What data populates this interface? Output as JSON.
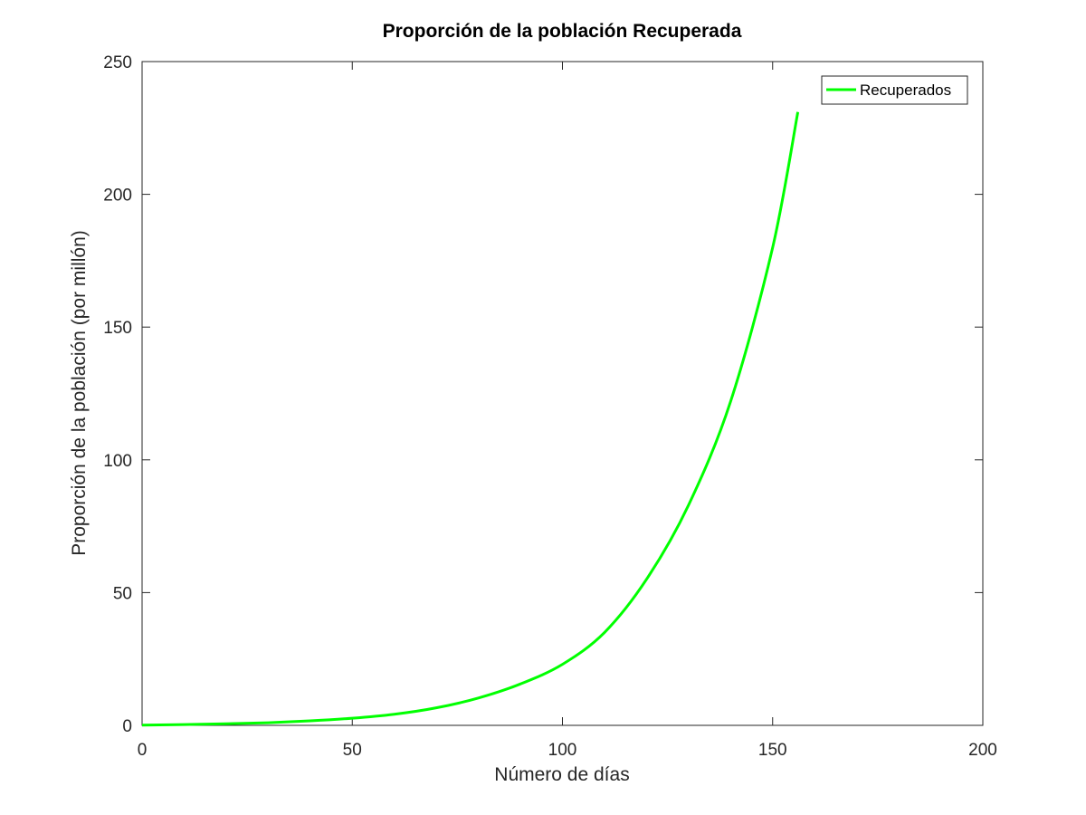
{
  "chart_data": {
    "type": "line",
    "title": "Proporción de la población Recuperada",
    "xlabel": "Número de días",
    "ylabel": "Proporción de la población (por millón)",
    "xlim": [
      0,
      200
    ],
    "ylim": [
      0,
      250
    ],
    "xticks": [
      0,
      50,
      100,
      150,
      200
    ],
    "yticks": [
      0,
      50,
      100,
      150,
      200,
      250
    ],
    "grid": false,
    "legend_position": "top-right",
    "series": [
      {
        "name": "Recuperados",
        "color": "#00ff00",
        "x": [
          0,
          10,
          20,
          30,
          40,
          50,
          60,
          70,
          80,
          90,
          100,
          110,
          120,
          130,
          140,
          150,
          156
        ],
        "y": [
          0.1,
          0.3,
          0.6,
          1.0,
          1.7,
          2.7,
          4.2,
          6.6,
          10.3,
          15.6,
          23.0,
          35.0,
          55.0,
          83.0,
          122.0,
          180.0,
          231.0
        ]
      }
    ]
  }
}
